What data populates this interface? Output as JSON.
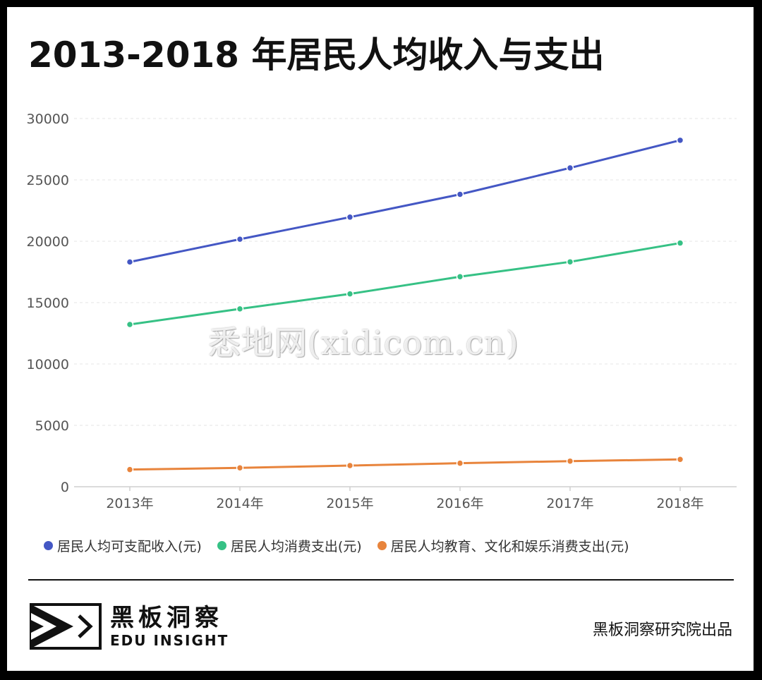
{
  "title": "2013-2018 年居民人均收入与支出",
  "watermark": "悉地网(xidicom.cn)",
  "chart_data": {
    "type": "line",
    "title": "2013-2018 年居民人均收入与支出",
    "xlabel": "",
    "ylabel": "",
    "categories": [
      "2013年",
      "2014年",
      "2015年",
      "2016年",
      "2017年",
      "2018年"
    ],
    "ylim": [
      0,
      30000
    ],
    "yticks": [
      0,
      5000,
      10000,
      15000,
      20000,
      25000,
      30000
    ],
    "grid": true,
    "legend_position": "bottom",
    "series": [
      {
        "name": "居民人均可支配收入(元)",
        "color": "#4457c4",
        "values": [
          18311,
          20167,
          21966,
          23821,
          25974,
          28228
        ]
      },
      {
        "name": "居民人均消费支出(元)",
        "color": "#36c185",
        "values": [
          13220,
          14491,
          15712,
          17111,
          18322,
          19853
        ]
      },
      {
        "name": "居民人均教育、文化和娱乐消费支出(元)",
        "color": "#e8843c",
        "values": [
          1398,
          1536,
          1723,
          1915,
          2086,
          2226
        ]
      }
    ]
  },
  "footer": {
    "logo_cn": "黑板洞察",
    "logo_en": "EDU INSIGHT",
    "credit": "黑板洞察研究院出品"
  }
}
